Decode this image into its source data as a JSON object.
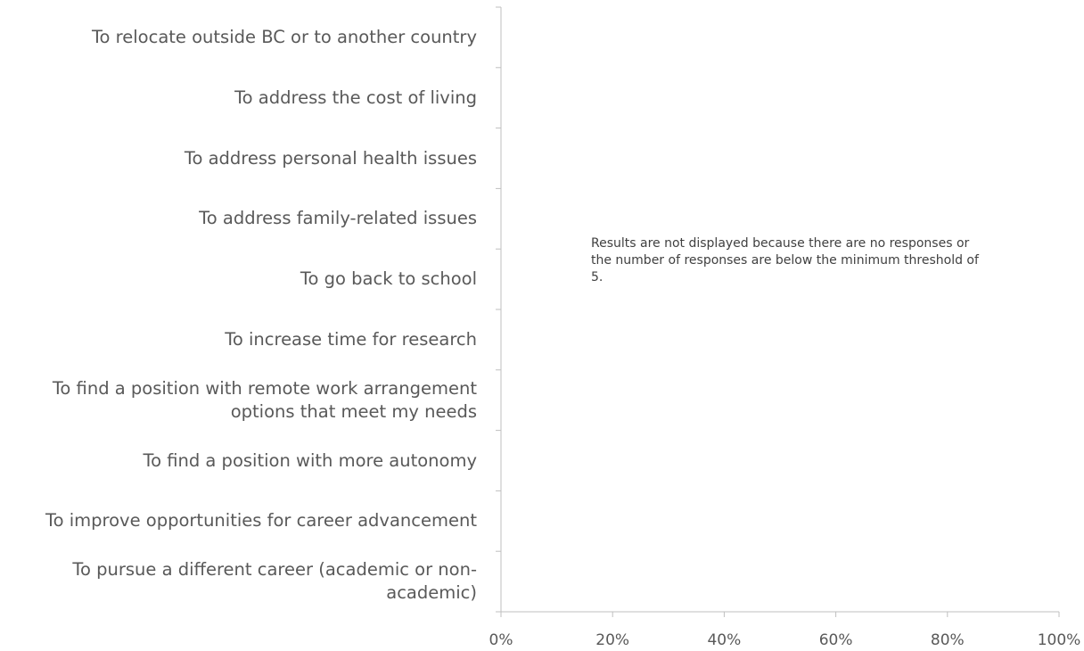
{
  "chart_data": {
    "type": "bar",
    "orientation": "horizontal",
    "categories": [
      "To relocate outside BC or to another country",
      "To address the cost of living",
      "To address personal health issues",
      "To address family-related issues",
      "To go back to school",
      "To increase time for research",
      "To find a position with remote work arrangement options that meet my needs",
      "To find a position with more autonomy",
      "To improve opportunities for career advancement",
      "To pursue a different career (academic or non-academic)"
    ],
    "xlim": [
      0,
      100
    ],
    "xticks": [
      {
        "value": 0,
        "label": "0%"
      },
      {
        "value": 20,
        "label": "20%"
      },
      {
        "value": 40,
        "label": "40%"
      },
      {
        "value": 60,
        "label": "60%"
      },
      {
        "value": 80,
        "label": "80%"
      },
      {
        "value": 100,
        "label": "100%"
      }
    ],
    "annotation": "Results are not displayed because there are no responses or the number of responses are below the minimum threshold of 5."
  }
}
